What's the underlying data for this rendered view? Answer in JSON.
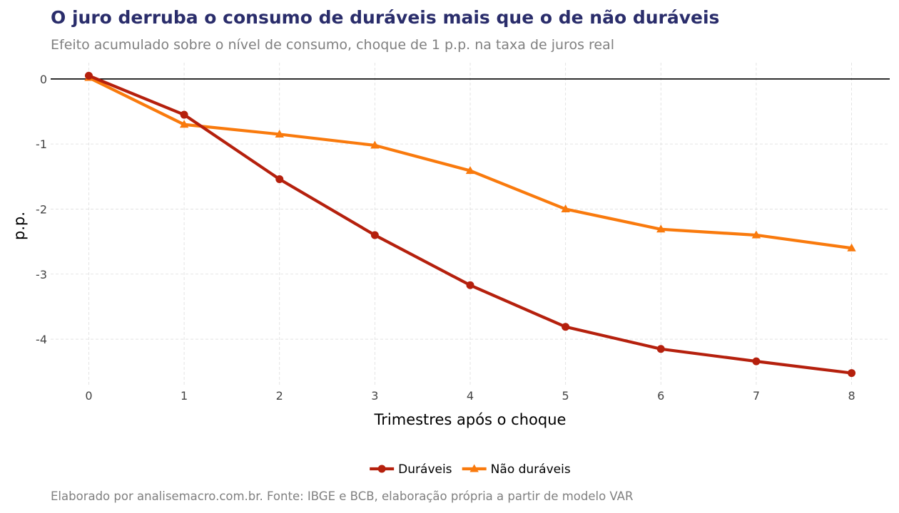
{
  "header": {
    "title": "O juro derruba o consumo de duráveis mais que o de não duráveis",
    "subtitle": "Efeito acumulado sobre o nível de consumo, choque de 1 p.p. na taxa de juros real"
  },
  "footer": {
    "caption": "Elaborado por analisemacro.com.br. Fonte: IBGE e BCB, elaboração própria a partir de modelo VAR"
  },
  "chart_data": {
    "type": "line",
    "title": "O juro derruba o consumo de duráveis mais que o de não duráveis",
    "subtitle": "Efeito acumulado sobre o nível de consumo, choque de 1 p.p. na taxa de juros real",
    "xlabel": "Trimestres após o choque",
    "ylabel": "p.p.",
    "x": [
      0,
      1,
      2,
      3,
      4,
      5,
      6,
      7,
      8
    ],
    "xticks": [
      "0",
      "1",
      "2",
      "3",
      "4",
      "5",
      "6",
      "7",
      "8"
    ],
    "yticks": [
      "0",
      "-1",
      "-2",
      "-3",
      "-4"
    ],
    "xlim": [
      -0.4,
      8.4
    ],
    "ylim": [
      -4.7,
      0.25
    ],
    "grid": true,
    "zero_line": true,
    "legend_position": "bottom",
    "series": [
      {
        "name": "Duráveis",
        "color": "#b5200d",
        "marker": "circle",
        "values": [
          0.05,
          -0.55,
          -1.54,
          -2.4,
          -3.17,
          -3.81,
          -4.15,
          -4.34,
          -4.52
        ]
      },
      {
        "name": "Não duráveis",
        "color": "#f97a0d",
        "marker": "triangle",
        "values": [
          0.02,
          -0.7,
          -0.85,
          -1.02,
          -1.41,
          -2.0,
          -2.31,
          -2.4,
          -2.6
        ]
      }
    ]
  }
}
